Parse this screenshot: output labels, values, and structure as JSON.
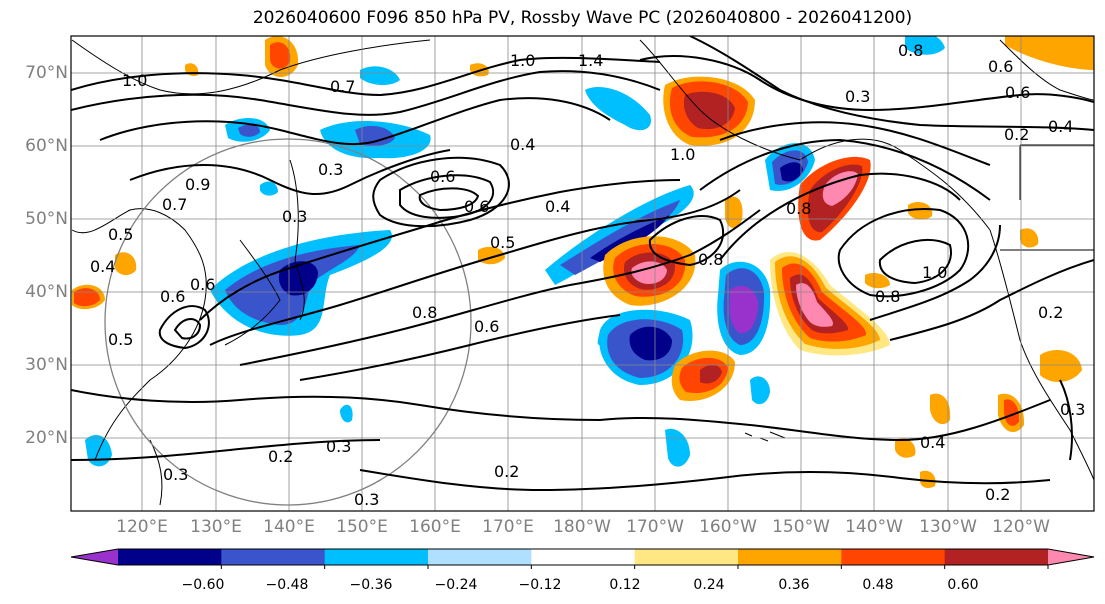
{
  "title": "2026040600 F096 850 hPa PV, Rossby Wave PC (2026040800 - 2026041200)",
  "latitude_labels": [
    "20°N",
    "30°N",
    "40°N",
    "50°N",
    "60°N",
    "70°N"
  ],
  "longitude_labels": [
    "120°E",
    "130°E",
    "140°E",
    "150°E",
    "160°E",
    "170°E",
    "180°W",
    "170°W",
    "160°W",
    "150°W",
    "140°W",
    "130°W",
    "120°W"
  ],
  "colorbar": {
    "colors": [
      "#9932cc",
      "#00008b",
      "#3a55cc",
      "#00bfff",
      "#b0e0ff",
      "#ffffff",
      "#ffe884",
      "#ffa500",
      "#ff4500",
      "#b22222",
      "#ff88b0"
    ],
    "tick_labels": [
      "−0.60",
      "−0.48",
      "−0.36",
      "−0.24",
      "−0.12",
      "0.12",
      "0.24",
      "0.36",
      "0.48",
      "0.60"
    ]
  },
  "contour_labels": [
    "1.0",
    "1.4",
    "1.0",
    "0.7",
    "0.8",
    "0.6",
    "0.6",
    "0.3",
    "0.7",
    "0.9",
    "0.4",
    "0.3",
    "0.6",
    "0.6",
    "0.5",
    "0.4",
    "0.8",
    "0.6",
    "0.5",
    "0.4",
    "0.6",
    "0.2",
    "0.3",
    "0.3",
    "0.3",
    "0.2",
    "1.0",
    "0.8",
    "0.8",
    "1.0",
    "0.8",
    "0.2",
    "0.4",
    "0.2",
    "0.3",
    "0.5",
    "0.3",
    "0.2",
    "0.4",
    "0.6"
  ]
}
